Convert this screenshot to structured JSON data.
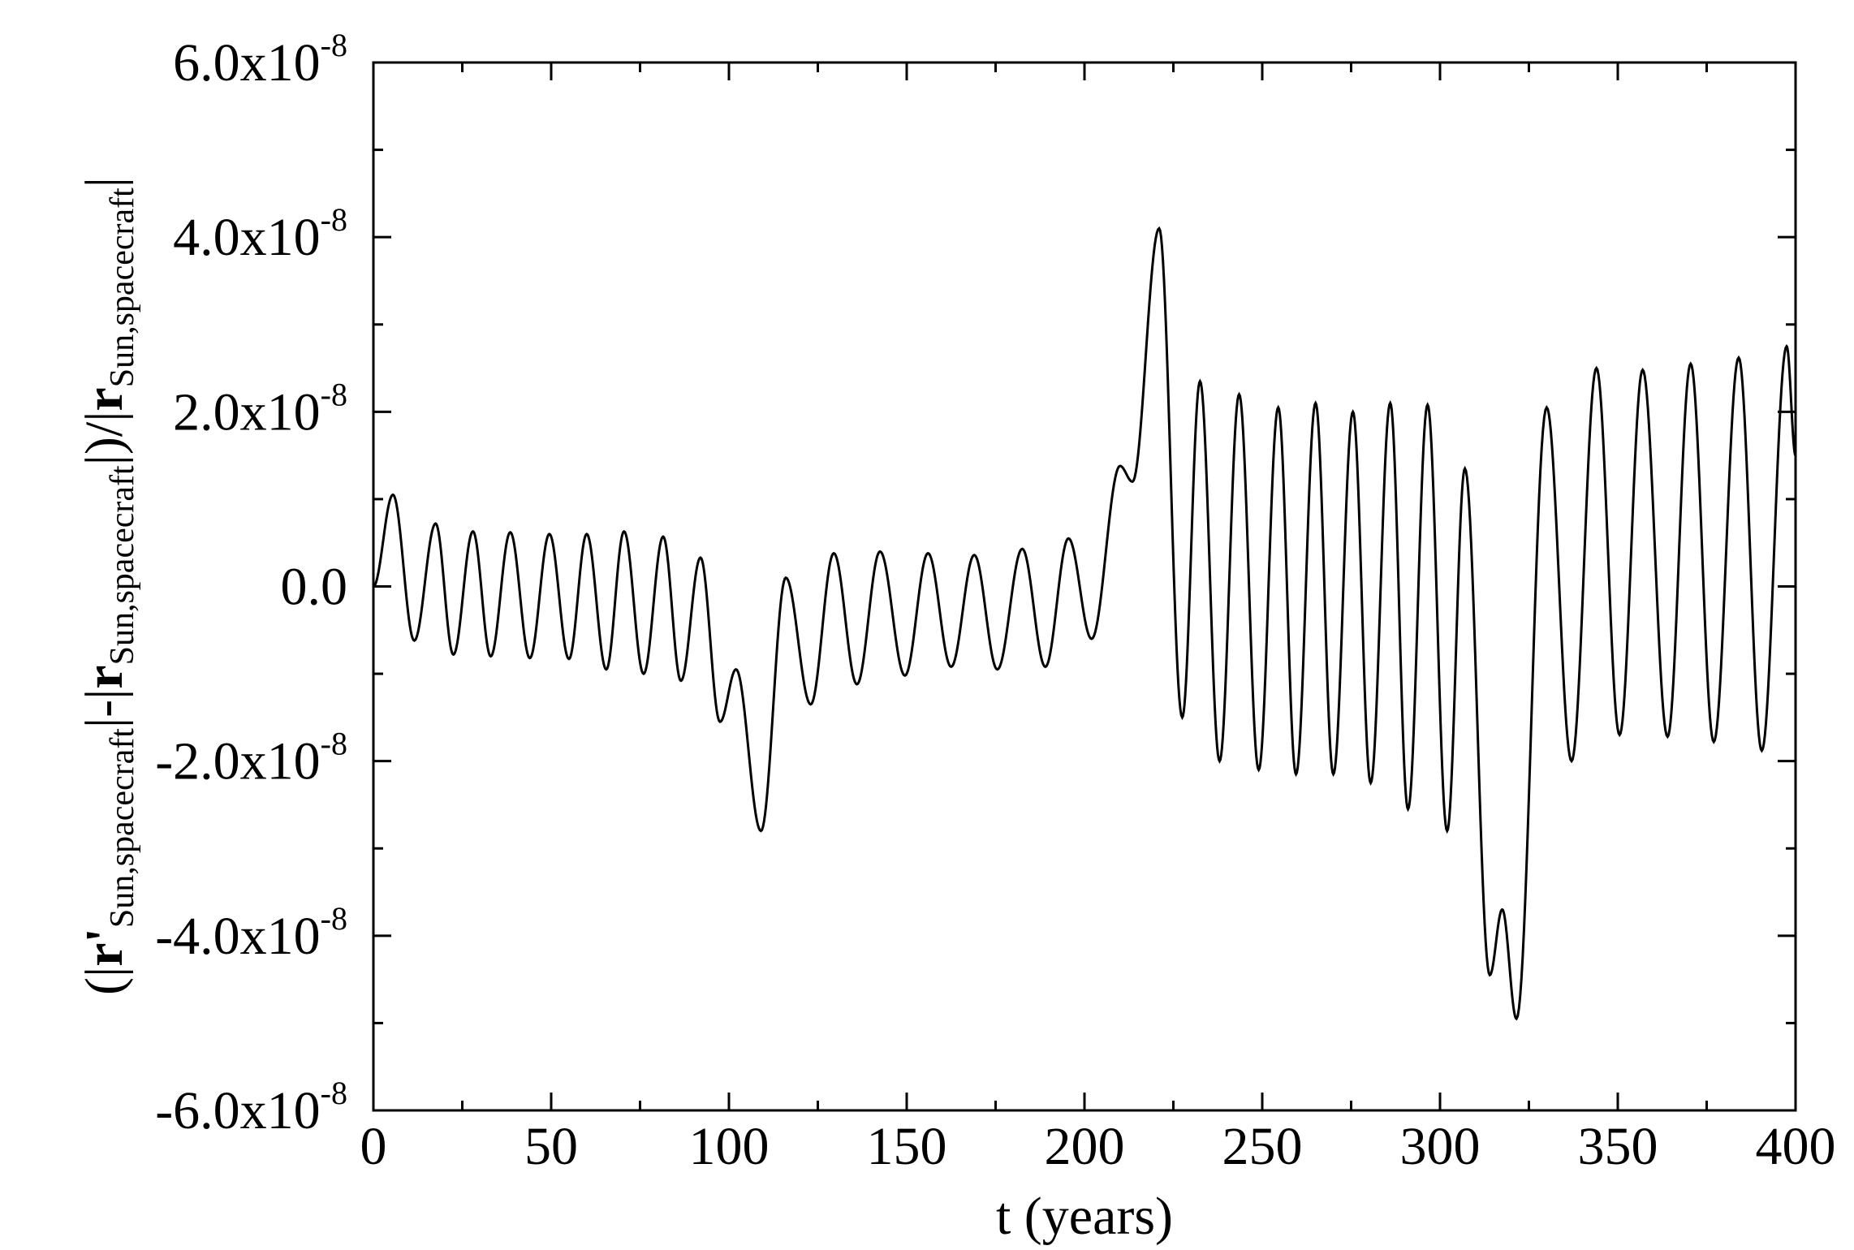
{
  "chart_data": {
    "type": "line",
    "title": "",
    "xlabel": "t (years)",
    "ylabel_parts": {
      "open": "(|",
      "r_prime": "r'",
      "sub1": "Sun,spacecraft",
      "minus": "|-|",
      "r": "r",
      "sub2": "Sun,spacecraft",
      "close": "|)/|",
      "r2": "r",
      "sub3": "Sun,spacecraft",
      "end": "|"
    },
    "xlim": [
      0,
      400
    ],
    "ylim": [
      -6e-08,
      6e-08
    ],
    "grid": false,
    "x_ticks": [
      {
        "value": 0,
        "label": "0"
      },
      {
        "value": 50,
        "label": "50"
      },
      {
        "value": 100,
        "label": "100"
      },
      {
        "value": 150,
        "label": "150"
      },
      {
        "value": 200,
        "label": "200"
      },
      {
        "value": 250,
        "label": "250"
      },
      {
        "value": 300,
        "label": "300"
      },
      {
        "value": 350,
        "label": "350"
      },
      {
        "value": 400,
        "label": "400"
      }
    ],
    "y_ticks": [
      {
        "value": 6e-08,
        "mantissa": "6.0x10",
        "exponent": "-8"
      },
      {
        "value": 4e-08,
        "mantissa": "4.0x10",
        "exponent": "-8"
      },
      {
        "value": 2e-08,
        "mantissa": "2.0x10",
        "exponent": "-8"
      },
      {
        "value": 0.0,
        "mantissa": "0.0",
        "exponent": ""
      },
      {
        "value": -2e-08,
        "mantissa": "-2.0x10",
        "exponent": "-8"
      },
      {
        "value": -4e-08,
        "mantissa": "-4.0x10",
        "exponent": "-8"
      },
      {
        "value": -6e-08,
        "mantissa": "-6.0x10",
        "exponent": "-8"
      }
    ],
    "series": [
      {
        "color": "#000000",
        "extrema": [
          [
            0,
            0.0
          ],
          [
            5.5,
            1.05e-08
          ],
          [
            11.5,
            -6.2e-09
          ],
          [
            17.5,
            7.2e-09
          ],
          [
            22.5,
            -7.8e-09
          ],
          [
            28,
            6.3e-09
          ],
          [
            33,
            -8e-09
          ],
          [
            38.5,
            6.2e-09
          ],
          [
            44,
            -8.2e-09
          ],
          [
            49.5,
            6e-09
          ],
          [
            55,
            -8.3e-09
          ],
          [
            60,
            6e-09
          ],
          [
            65.5,
            -9.5e-09
          ],
          [
            70.5,
            6.3e-09
          ],
          [
            76,
            -1e-08
          ],
          [
            81.5,
            5.7e-09
          ],
          [
            86.5,
            -1.08e-08
          ],
          [
            92,
            3.3e-09
          ],
          [
            97.5,
            -1.55e-08
          ],
          [
            102,
            -9.5e-09
          ],
          [
            109,
            -2.8e-08
          ],
          [
            116,
            1e-09
          ],
          [
            123,
            -1.35e-08
          ],
          [
            129.5,
            3.8e-09
          ],
          [
            136,
            -1.12e-08
          ],
          [
            142.5,
            4e-09
          ],
          [
            149.5,
            -1.02e-08
          ],
          [
            156,
            3.8e-09
          ],
          [
            162.5,
            -9.2e-09
          ],
          [
            169,
            3.6e-09
          ],
          [
            175.5,
            -9.5e-09
          ],
          [
            182.5,
            4.3e-09
          ],
          [
            189,
            -9.2e-09
          ],
          [
            195.5,
            5.5e-09
          ],
          [
            202,
            -6e-09
          ],
          [
            210,
            1.38e-08
          ],
          [
            213.5,
            1.2e-08
          ],
          [
            221,
            4.1e-08
          ],
          [
            227.5,
            -1.5e-08
          ],
          [
            232.5,
            2.35e-08
          ],
          [
            238,
            -2e-08
          ],
          [
            243.5,
            2.2e-08
          ],
          [
            249,
            -2.1e-08
          ],
          [
            254.5,
            2.05e-08
          ],
          [
            259.5,
            -2.15e-08
          ],
          [
            265,
            2.1e-08
          ],
          [
            270,
            -2.15e-08
          ],
          [
            275.5,
            2e-08
          ],
          [
            280.5,
            -2.25e-08
          ],
          [
            286,
            2.1e-08
          ],
          [
            291,
            -2.55e-08
          ],
          [
            296.5,
            2.08e-08
          ],
          [
            302,
            -2.8e-08
          ],
          [
            307,
            1.35e-08
          ],
          [
            314,
            -4.45e-08
          ],
          [
            317.5,
            -3.7e-08
          ],
          [
            321.5,
            -4.95e-08
          ],
          [
            330,
            2.05e-08
          ],
          [
            337,
            -2e-08
          ],
          [
            344,
            2.5e-08
          ],
          [
            350.5,
            -1.7e-08
          ],
          [
            357,
            2.48e-08
          ],
          [
            364,
            -1.72e-08
          ],
          [
            370.5,
            2.55e-08
          ],
          [
            377,
            -1.78e-08
          ],
          [
            384,
            2.62e-08
          ],
          [
            390.5,
            -1.88e-08
          ],
          [
            397.5,
            2.75e-08
          ],
          [
            400,
            1.5e-08
          ]
        ]
      }
    ]
  }
}
